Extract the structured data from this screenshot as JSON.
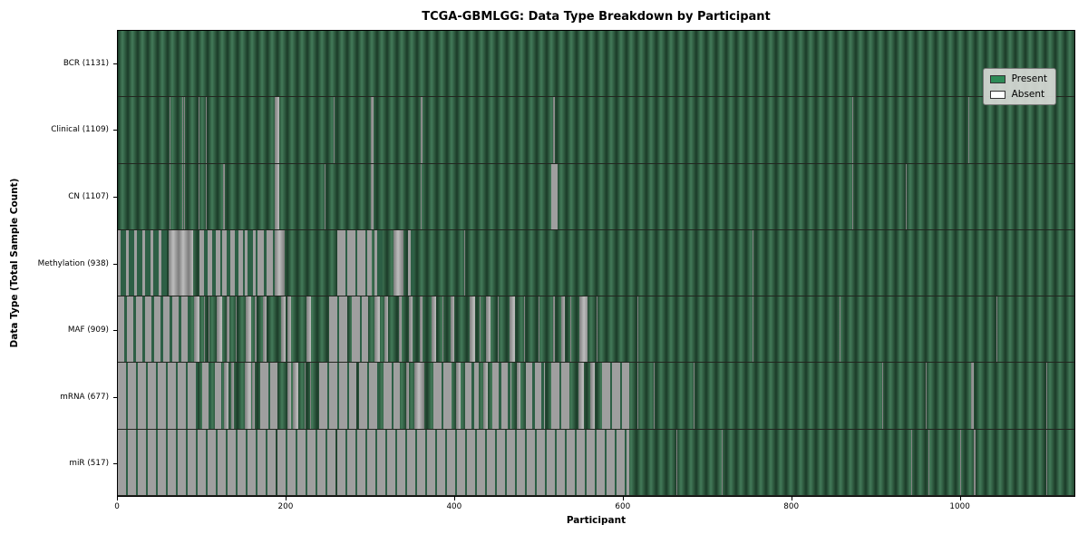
{
  "chart_data": {
    "type": "heatmap",
    "title": "TCGA-GBMLGG: Data Type Breakdown by Participant",
    "xlabel": "Participant",
    "ylabel": "Data Type (Total Sample Count)",
    "x_ticks": [
      0,
      200,
      400,
      600,
      800,
      1000
    ],
    "axis_max": 1137,
    "total_participants": 1131,
    "grid": false,
    "legend_position": "upper right",
    "legend": {
      "present_label": "Present",
      "absent_label": "Absent",
      "present_color": "#2e8b57",
      "absent_color": "#ffffff"
    },
    "colors": {
      "present_dark": "#1b3b28",
      "present_light": "#437a59",
      "absent_dark": "#7d7d7d",
      "absent_light": "#bdbdbd"
    },
    "rows": [
      {
        "data_type": "BCR",
        "label": "BCR (1131)",
        "present_count": 1131,
        "absent_segments": []
      },
      {
        "data_type": "Clinical",
        "label": "Clinical (1109)",
        "present_count": 1109,
        "absent_segments": [
          [
            61,
            62,
            1
          ],
          [
            77,
            78,
            1
          ],
          [
            79,
            80,
            1
          ],
          [
            96,
            97,
            1
          ],
          [
            105,
            106,
            1
          ],
          [
            186,
            192,
            1
          ],
          [
            257,
            258,
            1
          ],
          [
            301,
            304,
            1
          ],
          [
            360,
            362,
            1
          ],
          [
            422,
            423,
            1
          ],
          [
            517,
            520,
            1
          ],
          [
            873,
            874,
            1
          ],
          [
            1011,
            1012,
            1
          ]
        ]
      },
      {
        "data_type": "CN",
        "label": "CN (1107)",
        "present_count": 1107,
        "absent_segments": [
          [
            61,
            62,
            1
          ],
          [
            77,
            78,
            1
          ],
          [
            79,
            80,
            1
          ],
          [
            96,
            97,
            1
          ],
          [
            105,
            106,
            1
          ],
          [
            125,
            127,
            1
          ],
          [
            186,
            192,
            1
          ],
          [
            246,
            247,
            1
          ],
          [
            301,
            304,
            1
          ],
          [
            360,
            361,
            1
          ],
          [
            422,
            423,
            1
          ],
          [
            515,
            523,
            0.8
          ],
          [
            873,
            874,
            1
          ],
          [
            937,
            938,
            1
          ]
        ]
      },
      {
        "data_type": "Methylation",
        "label": "Methylation (938)",
        "present_count": 938,
        "absent_segments": [
          [
            0,
            58,
            0.4
          ],
          [
            60,
            89,
            1
          ],
          [
            97,
            124,
            0.5
          ],
          [
            124,
            151,
            0.65
          ],
          [
            151,
            166,
            0.3
          ],
          [
            166,
            186,
            0.8
          ],
          [
            186,
            198,
            1
          ],
          [
            261,
            302,
            0.95
          ],
          [
            305,
            315,
            0.4
          ],
          [
            328,
            339,
            1
          ],
          [
            345,
            352,
            0.35
          ],
          [
            412,
            413,
            1
          ],
          [
            754,
            755,
            1
          ],
          [
            838,
            839,
            1
          ],
          [
            908,
            909,
            1
          ]
        ]
      },
      {
        "data_type": "MAF",
        "label": "MAF (909)",
        "present_count": 909,
        "absent_segments": [
          [
            0,
            86,
            0.85
          ],
          [
            91,
            97,
            1
          ],
          [
            102,
            103,
            1
          ],
          [
            108,
            109,
            1
          ],
          [
            118,
            124,
            1
          ],
          [
            129,
            133,
            1
          ],
          [
            140,
            141,
            1
          ],
          [
            152,
            158,
            1
          ],
          [
            163,
            165,
            1
          ],
          [
            172,
            177,
            1
          ],
          [
            194,
            199,
            1
          ],
          [
            202,
            206,
            1
          ],
          [
            224,
            230,
            1
          ],
          [
            251,
            273,
            0.95
          ],
          [
            278,
            298,
            0.9
          ],
          [
            305,
            312,
            1
          ],
          [
            317,
            321,
            1
          ],
          [
            334,
            337,
            1
          ],
          [
            346,
            350,
            1
          ],
          [
            359,
            362,
            1
          ],
          [
            373,
            378,
            1
          ],
          [
            386,
            387,
            1
          ],
          [
            395,
            400,
            1
          ],
          [
            418,
            425,
            1
          ],
          [
            430,
            431,
            1
          ],
          [
            438,
            443,
            1
          ],
          [
            452,
            453,
            1
          ],
          [
            466,
            472,
            1
          ],
          [
            483,
            484,
            1
          ],
          [
            500,
            501,
            1
          ],
          [
            517,
            520,
            1
          ],
          [
            527,
            531,
            1
          ],
          [
            538,
            539,
            1
          ],
          [
            549,
            558,
            1
          ],
          [
            569,
            570,
            1
          ],
          [
            618,
            619,
            1
          ],
          [
            754,
            755,
            1
          ],
          [
            858,
            859,
            1
          ],
          [
            1044,
            1045,
            1
          ]
        ]
      },
      {
        "data_type": "mRNA",
        "label": "mRNA (677)",
        "present_count": 677,
        "absent_segments": [
          [
            0,
            95,
            0.93
          ],
          [
            100,
            111,
            0.8
          ],
          [
            115,
            124,
            0.75
          ],
          [
            126,
            131,
            1
          ],
          [
            135,
            138,
            1
          ],
          [
            151,
            158,
            1
          ],
          [
            160,
            163,
            1
          ],
          [
            169,
            190,
            0.92
          ],
          [
            201,
            206,
            1
          ],
          [
            208,
            215,
            1
          ],
          [
            222,
            223,
            1
          ],
          [
            229,
            230,
            1
          ],
          [
            239,
            283,
            0.93
          ],
          [
            287,
            310,
            0.95
          ],
          [
            316,
            335,
            0.9
          ],
          [
            343,
            346,
            1
          ],
          [
            352,
            364,
            1
          ],
          [
            375,
            397,
            0.9
          ],
          [
            402,
            407,
            1
          ],
          [
            413,
            429,
            0.85
          ],
          [
            434,
            440,
            1
          ],
          [
            445,
            468,
            0.85
          ],
          [
            474,
            479,
            1
          ],
          [
            485,
            508,
            0.85
          ],
          [
            515,
            537,
            0.95
          ],
          [
            547,
            554,
            1
          ],
          [
            562,
            567,
            1
          ],
          [
            576,
            608,
            0.97
          ],
          [
            618,
            619,
            1
          ],
          [
            637,
            638,
            1
          ],
          [
            684,
            685,
            1
          ],
          [
            909,
            910,
            1
          ],
          [
            960,
            961,
            1
          ],
          [
            1014,
            1017,
            1
          ],
          [
            1104,
            1105,
            1
          ]
        ]
      },
      {
        "data_type": "miR",
        "label": "miR (517)",
        "present_count": 517,
        "absent_segments": [
          [
            0,
            188,
            0.99
          ],
          [
            190,
            259,
            0.99
          ],
          [
            261,
            608,
            0.99
          ],
          [
            664,
            665,
            1
          ],
          [
            718,
            719,
            1
          ],
          [
            943,
            944,
            1
          ],
          [
            964,
            965,
            1
          ],
          [
            1001,
            1002,
            1
          ],
          [
            1017,
            1020,
            1
          ],
          [
            1104,
            1105,
            1
          ]
        ]
      }
    ]
  }
}
